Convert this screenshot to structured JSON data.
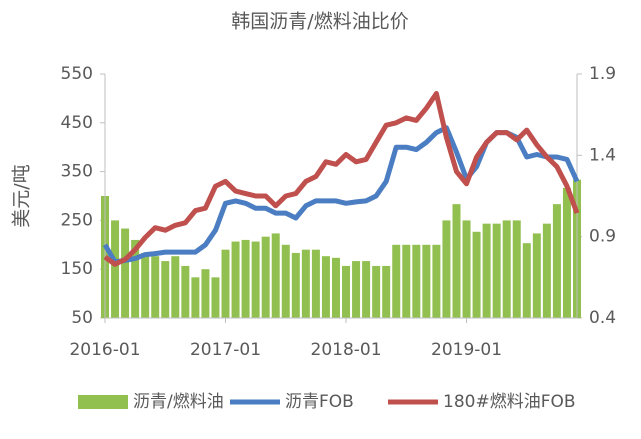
{
  "chart_data": {
    "type": "bar-line-dual",
    "title": "韩国沥青/燃料油比价",
    "y_label": "美元/吨",
    "categories": [
      "2016-01",
      null,
      null,
      null,
      null,
      null,
      null,
      null,
      null,
      null,
      null,
      null,
      "2017-01",
      null,
      null,
      null,
      null,
      null,
      null,
      null,
      null,
      null,
      null,
      null,
      "2018-01",
      null,
      null,
      null,
      null,
      null,
      null,
      null,
      null,
      null,
      null,
      null,
      "2019-01",
      null,
      null,
      null,
      null,
      null,
      null,
      null,
      null,
      null,
      null,
      null
    ],
    "ylim": [
      50,
      550
    ],
    "yticks": [
      50,
      150,
      250,
      350,
      450,
      550
    ],
    "y2lim": [
      0.4,
      1.9
    ],
    "y2ticks": [
      0.4,
      0.9,
      1.4,
      1.9
    ],
    "series": [
      {
        "name": "沥青/燃料油",
        "type": "bar",
        "axis": "y2",
        "color": "#92c050",
        "values": [
          1.15,
          1.0,
          0.95,
          0.88,
          0.8,
          0.78,
          0.75,
          0.78,
          0.72,
          0.65,
          0.7,
          0.65,
          0.82,
          0.87,
          0.88,
          0.87,
          0.9,
          0.92,
          0.85,
          0.8,
          0.82,
          0.82,
          0.78,
          0.77,
          0.72,
          0.75,
          0.75,
          0.72,
          0.72,
          0.85,
          0.85,
          0.85,
          0.85,
          0.85,
          1.0,
          1.1,
          1.0,
          0.93,
          0.98,
          0.98,
          1.0,
          1.0,
          0.86,
          0.92,
          0.98,
          1.1,
          1.2,
          1.25
        ]
      },
      {
        "name": "沥青FOB",
        "type": "line",
        "color": "#4a7dc2",
        "values": [
          200,
          165,
          168,
          172,
          180,
          182,
          185,
          185,
          185,
          185,
          200,
          230,
          285,
          290,
          285,
          275,
          275,
          265,
          265,
          255,
          280,
          290,
          290,
          290,
          285,
          288,
          290,
          300,
          330,
          400,
          400,
          395,
          410,
          430,
          440,
          390,
          335,
          360,
          410,
          430,
          430,
          420,
          380,
          385,
          380,
          380,
          375,
          330
        ]
      },
      {
        "name": "180#燃料油FOB",
        "type": "line",
        "color": "#c0504d",
        "values": [
          175,
          160,
          170,
          190,
          215,
          235,
          230,
          240,
          245,
          270,
          275,
          320,
          330,
          310,
          305,
          300,
          300,
          280,
          300,
          305,
          330,
          340,
          370,
          365,
          385,
          370,
          375,
          410,
          445,
          450,
          460,
          455,
          480,
          510,
          420,
          350,
          325,
          380,
          410,
          430,
          430,
          415,
          435,
          405,
          380,
          360,
          320,
          265
        ]
      }
    ]
  }
}
